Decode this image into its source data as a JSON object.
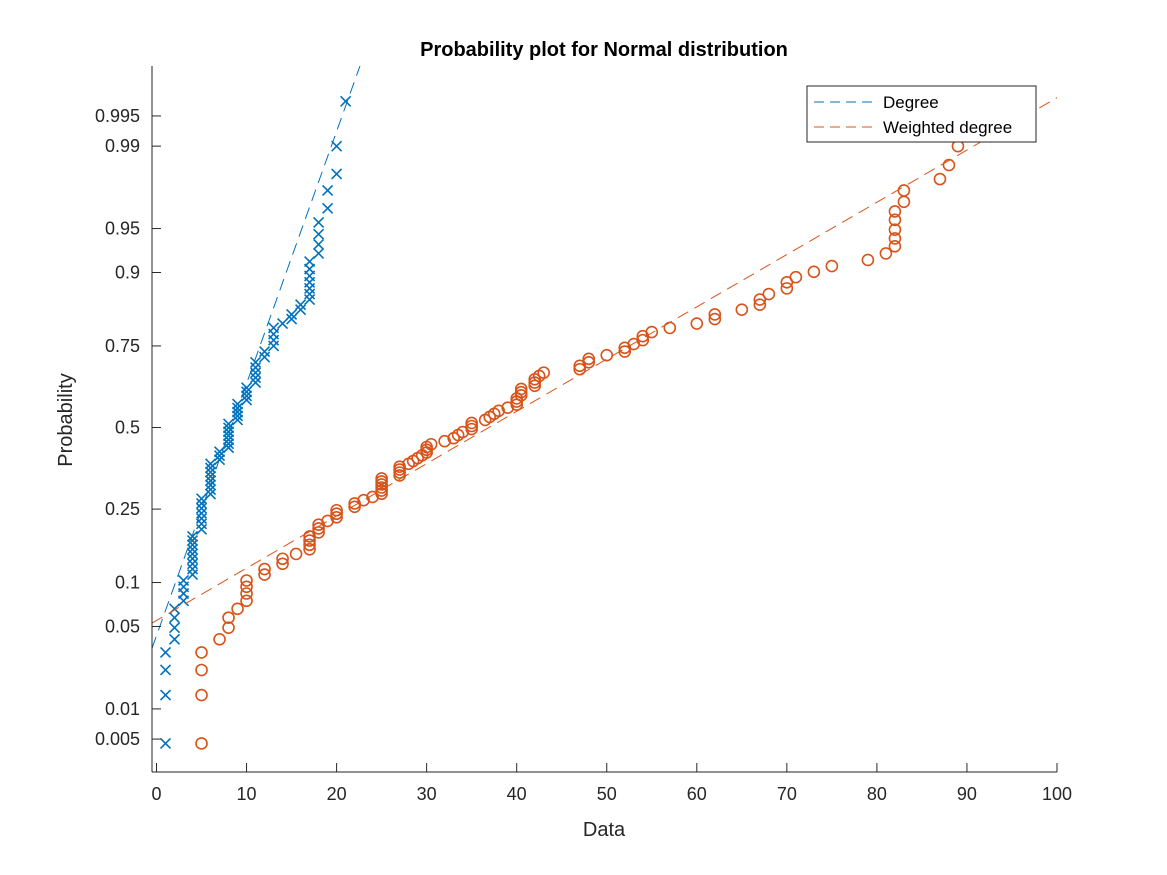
{
  "chart_data": {
    "type": "scatter",
    "title": "Probability plot for Normal distribution",
    "xlabel": "Data",
    "ylabel": "Probability",
    "xlim": [
      -0.5,
      100
    ],
    "x_ticks": [
      0,
      10,
      20,
      30,
      40,
      50,
      60,
      70,
      80,
      90,
      100
    ],
    "y_scale": "normal-probability",
    "ylim": [
      0.0022,
      0.9986
    ],
    "y_ticks": [
      0.005,
      0.01,
      0.05,
      0.1,
      0.25,
      0.5,
      0.75,
      0.9,
      0.95,
      0.99,
      0.995
    ],
    "y_tick_labels": [
      "0.005",
      "0.01",
      "0.05",
      "0.1",
      "0.25",
      "0.5",
      "0.75",
      "0.9",
      "0.95",
      "0.99",
      "0.995"
    ],
    "grid": false,
    "legend_position": "top-right",
    "series": [
      {
        "name": "Degree",
        "color": "#0072BD",
        "marker": "x",
        "fit_line": {
          "x": [
            -0.5,
            22.7
          ],
          "p": [
            0.034,
            0.9987
          ]
        },
        "points": [
          [
            1,
            0.0045
          ],
          [
            1,
            0.0135
          ],
          [
            1,
            0.0225
          ],
          [
            1,
            0.0315
          ],
          [
            2,
            0.04
          ],
          [
            2,
            0.049
          ],
          [
            2,
            0.058
          ],
          [
            2,
            0.067
          ],
          [
            3,
            0.076
          ],
          [
            3,
            0.085
          ],
          [
            3,
            0.094
          ],
          [
            3,
            0.103
          ],
          [
            4,
            0.112
          ],
          [
            4,
            0.121
          ],
          [
            4,
            0.13
          ],
          [
            4,
            0.139
          ],
          [
            4,
            0.148
          ],
          [
            4,
            0.157
          ],
          [
            4,
            0.166
          ],
          [
            4,
            0.175
          ],
          [
            4,
            0.184
          ],
          [
            5,
            0.2
          ],
          [
            5,
            0.213
          ],
          [
            5,
            0.226
          ],
          [
            5,
            0.239
          ],
          [
            5,
            0.252
          ],
          [
            5,
            0.265
          ],
          [
            5,
            0.278
          ],
          [
            6,
            0.291
          ],
          [
            6,
            0.304
          ],
          [
            6,
            0.317
          ],
          [
            6,
            0.33
          ],
          [
            6,
            0.343
          ],
          [
            6,
            0.356
          ],
          [
            6,
            0.369
          ],
          [
            6,
            0.382
          ],
          [
            7,
            0.395
          ],
          [
            7,
            0.408
          ],
          [
            7,
            0.421
          ],
          [
            8,
            0.434
          ],
          [
            8,
            0.447
          ],
          [
            8,
            0.46
          ],
          [
            8,
            0.473
          ],
          [
            8,
            0.486
          ],
          [
            8,
            0.499
          ],
          [
            8,
            0.512
          ],
          [
            9,
            0.525
          ],
          [
            9,
            0.538
          ],
          [
            9,
            0.551
          ],
          [
            9,
            0.564
          ],
          [
            9,
            0.577
          ],
          [
            10,
            0.59
          ],
          [
            10,
            0.603
          ],
          [
            10,
            0.616
          ],
          [
            10,
            0.629
          ],
          [
            11,
            0.645
          ],
          [
            11,
            0.66
          ],
          [
            11,
            0.675
          ],
          [
            11,
            0.69
          ],
          [
            11,
            0.705
          ],
          [
            12,
            0.72
          ],
          [
            12,
            0.735
          ],
          [
            13,
            0.75
          ],
          [
            13,
            0.765
          ],
          [
            13,
            0.78
          ],
          [
            13,
            0.795
          ],
          [
            14,
            0.805
          ],
          [
            15,
            0.815
          ],
          [
            15,
            0.825
          ],
          [
            16,
            0.835
          ],
          [
            16,
            0.845
          ],
          [
            17,
            0.855
          ],
          [
            17,
            0.865
          ],
          [
            17,
            0.875
          ],
          [
            17,
            0.885
          ],
          [
            17,
            0.895
          ],
          [
            17,
            0.905
          ],
          [
            17,
            0.915
          ],
          [
            18,
            0.925
          ],
          [
            18,
            0.935
          ],
          [
            18,
            0.945
          ],
          [
            18,
            0.955
          ],
          [
            19,
            0.965
          ],
          [
            19,
            0.975
          ],
          [
            20,
            0.982
          ],
          [
            20,
            0.99
          ],
          [
            21,
            0.9965
          ]
        ]
      },
      {
        "name": "Weighted degree",
        "color": "#D95319",
        "marker": "o",
        "fit_line": {
          "x": [
            -0.5,
            100
          ],
          "p": [
            0.053,
            0.9968
          ]
        },
        "points": [
          [
            5,
            0.0045
          ],
          [
            5,
            0.0135
          ],
          [
            5,
            0.0225
          ],
          [
            5,
            0.0315
          ],
          [
            7,
            0.04
          ],
          [
            8,
            0.049
          ],
          [
            8,
            0.058
          ],
          [
            9,
            0.067
          ],
          [
            10,
            0.076
          ],
          [
            10,
            0.085
          ],
          [
            10,
            0.094
          ],
          [
            10,
            0.103
          ],
          [
            12,
            0.112
          ],
          [
            12,
            0.121
          ],
          [
            14,
            0.13
          ],
          [
            14,
            0.139
          ],
          [
            15.5,
            0.148
          ],
          [
            17,
            0.157
          ],
          [
            17,
            0.166
          ],
          [
            17,
            0.175
          ],
          [
            17,
            0.184
          ],
          [
            18,
            0.193
          ],
          [
            18,
            0.202
          ],
          [
            18,
            0.211
          ],
          [
            19,
            0.22
          ],
          [
            20,
            0.229
          ],
          [
            20,
            0.238
          ],
          [
            20,
            0.247
          ],
          [
            22,
            0.256
          ],
          [
            22,
            0.265
          ],
          [
            23,
            0.274
          ],
          [
            24,
            0.283
          ],
          [
            25,
            0.292
          ],
          [
            25,
            0.301
          ],
          [
            25,
            0.31
          ],
          [
            25,
            0.319
          ],
          [
            25,
            0.328
          ],
          [
            25,
            0.337
          ],
          [
            27,
            0.346
          ],
          [
            27,
            0.355
          ],
          [
            27,
            0.364
          ],
          [
            27,
            0.373
          ],
          [
            28,
            0.382
          ],
          [
            28.5,
            0.391
          ],
          [
            29,
            0.4
          ],
          [
            29.5,
            0.409
          ],
          [
            30,
            0.418
          ],
          [
            30,
            0.427
          ],
          [
            30,
            0.436
          ],
          [
            30.5,
            0.445
          ],
          [
            32,
            0.455
          ],
          [
            33,
            0.465
          ],
          [
            33.5,
            0.475
          ],
          [
            34,
            0.485
          ],
          [
            35,
            0.495
          ],
          [
            35,
            0.505
          ],
          [
            35,
            0.515
          ],
          [
            36.5,
            0.525
          ],
          [
            37,
            0.535
          ],
          [
            37.5,
            0.545
          ],
          [
            38,
            0.555
          ],
          [
            39,
            0.565
          ],
          [
            40,
            0.575
          ],
          [
            40,
            0.585
          ],
          [
            40,
            0.595
          ],
          [
            40.5,
            0.605
          ],
          [
            40.5,
            0.615
          ],
          [
            40.5,
            0.625
          ],
          [
            42,
            0.635
          ],
          [
            42,
            0.645
          ],
          [
            42,
            0.655
          ],
          [
            42.5,
            0.665
          ],
          [
            43,
            0.675
          ],
          [
            47,
            0.685
          ],
          [
            47,
            0.695
          ],
          [
            48,
            0.705
          ],
          [
            48,
            0.715
          ],
          [
            50,
            0.725
          ],
          [
            52,
            0.735
          ],
          [
            52,
            0.745
          ],
          [
            53,
            0.755
          ],
          [
            54,
            0.765
          ],
          [
            54,
            0.775
          ],
          [
            55,
            0.785
          ],
          [
            57,
            0.795
          ],
          [
            60,
            0.805
          ],
          [
            62,
            0.815
          ],
          [
            62,
            0.825
          ],
          [
            65,
            0.835
          ],
          [
            67,
            0.845
          ],
          [
            67,
            0.855
          ],
          [
            68,
            0.865
          ],
          [
            70,
            0.875
          ],
          [
            70,
            0.885
          ],
          [
            71,
            0.893
          ],
          [
            73,
            0.901
          ],
          [
            75,
            0.909
          ],
          [
            79,
            0.917
          ],
          [
            81,
            0.925
          ],
          [
            82,
            0.933
          ],
          [
            82,
            0.941
          ],
          [
            82,
            0.949
          ],
          [
            82,
            0.957
          ],
          [
            82,
            0.963
          ],
          [
            83,
            0.969
          ],
          [
            83,
            0.975
          ],
          [
            87,
            0.98
          ],
          [
            88,
            0.985
          ],
          [
            89,
            0.99
          ],
          [
            90,
            0.995
          ]
        ]
      }
    ]
  }
}
